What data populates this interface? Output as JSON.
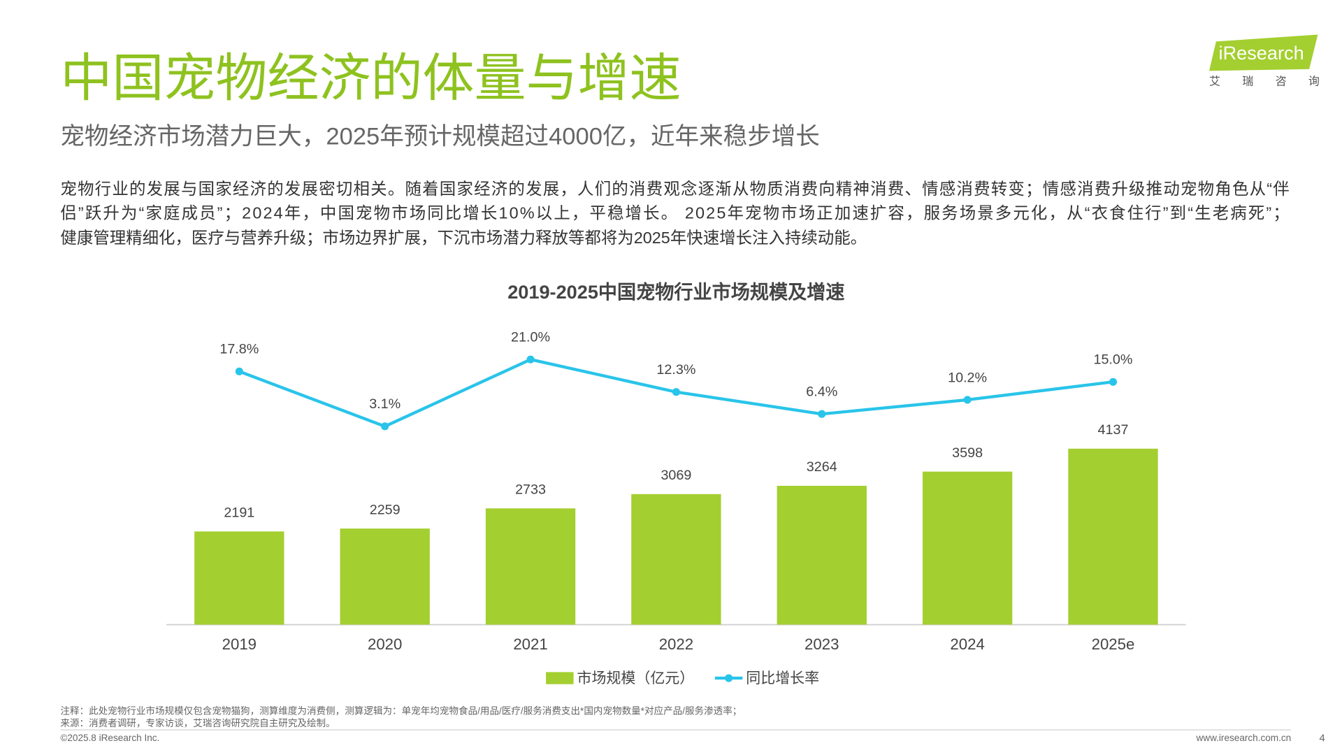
{
  "header": {
    "title": "中国宠物经济的体量与增速",
    "subtitle": "宠物经济市场潜力巨大，2025年预计规模超过4000亿，近年来稳步增长",
    "logo": "iResearch",
    "logo_cn": "艾 瑞 咨 询"
  },
  "body": {
    "lines": [
      "宠物行业的发展与国家经济的发展密切相关。随着国家经济的发展，人们的消费观念逐渐从物质消费向精神消费、情感消费转变；情感消费升级推动宠物角色从“伴",
      "侣”跃升为“家庭成员”；2024年，中国宠物市场同比增长10%以上，平稳增长。 2025年宠物市场正加速扩容，服务场景多元化，从“衣食住行”到“生老病死”；",
      "健康管理精细化，医疗与营养升级；市场边界扩展，下沉市场潜力释放等都将为2025年快速增长注入持续动能。"
    ]
  },
  "chart_data": {
    "type": "bar",
    "title": "2019-2025中国宠物行业市场规模及增速",
    "categories": [
      "2019",
      "2020",
      "2021",
      "2022",
      "2023",
      "2024",
      "2025e"
    ],
    "series": [
      {
        "name": "市场规模（亿元）",
        "type": "bar",
        "color": "#a4cf30",
        "values": [
          2191,
          2259,
          2733,
          3069,
          3264,
          3598,
          4137
        ]
      },
      {
        "name": "同比增长率",
        "type": "line",
        "axis": "y2",
        "color": "#29c4ea",
        "values": [
          17.8,
          3.1,
          21.0,
          12.3,
          6.4,
          10.2,
          15.0
        ],
        "value_labels": [
          "17.8%",
          "3.1%",
          "21.0%",
          "12.3%",
          "6.4%",
          "10.2%",
          "15.0%"
        ]
      }
    ],
    "ylim": [
      0,
      7200
    ],
    "y2lim": [
      -50,
      32
    ]
  },
  "footer": {
    "note": "注释：此处宠物行业市场规模仅包含宠物猫狗，测算维度为消费侧，测算逻辑为：单宠年均宠物食品/用品/医疗/服务消费支出*国内宠物数量*对应产品/服务渗透率；",
    "source": "来源：消费者调研，专家访谈，艾瑞咨询研究院自主研究及绘制。",
    "copyright": "©2025.8 iResearch Inc.",
    "website": "www.iresearch.com.cn",
    "page": 4
  }
}
